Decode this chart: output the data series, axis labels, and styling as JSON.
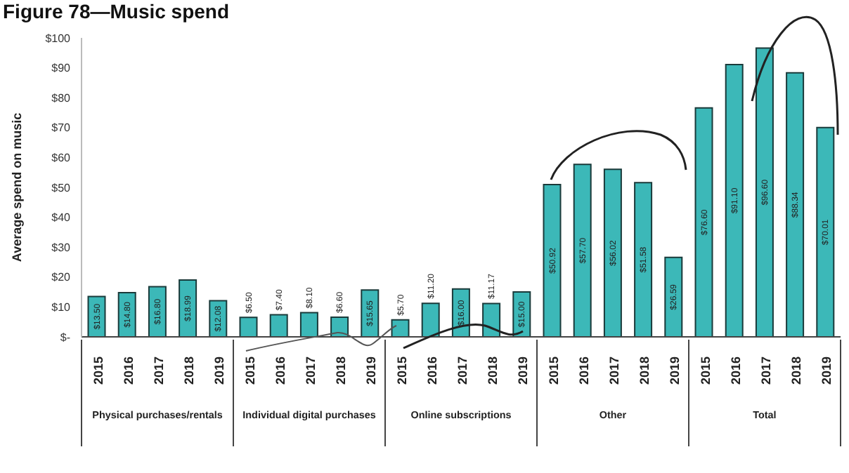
{
  "chart_data": {
    "type": "bar",
    "title": "Figure 78—Music spend",
    "ylabel": "Average spend on music",
    "categories": [
      "2015",
      "2016",
      "2017",
      "2018",
      "2019",
      "2015",
      "2016",
      "2017",
      "2018",
      "2019",
      "2015",
      "2016",
      "2017",
      "2018",
      "2019",
      "2015",
      "2016",
      "2017",
      "2018",
      "2019",
      "2015",
      "2016",
      "2017",
      "2018",
      "2019"
    ],
    "values": [
      13.5,
      14.8,
      16.8,
      18.99,
      12.08,
      6.5,
      7.4,
      8.1,
      6.6,
      15.65,
      5.7,
      11.2,
      16.0,
      11.17,
      15.0,
      50.92,
      57.7,
      56.02,
      51.58,
      26.59,
      76.6,
      91.1,
      96.6,
      88.34,
      70.01
    ],
    "value_labels": [
      "$13.50",
      "$14.80",
      "$16.80",
      "$18.99",
      "$12.08",
      "$6.50",
      "$7.40",
      "$8.10",
      "$6.60",
      "$15.65",
      "$5.70",
      "$11.20",
      "$16.00",
      "$11.17",
      "$15.00",
      "$50.92",
      "$57.70",
      "$56.02",
      "$51.58",
      "$26.59",
      "$76.60",
      "$91.10",
      "$96.60",
      "$88.34",
      "$70.01"
    ],
    "color": "#3cb8b8",
    "ylim": [
      0,
      100
    ],
    "yticks": [
      {
        "value": 0,
        "label": "$-"
      },
      {
        "value": 10,
        "label": "$10"
      },
      {
        "value": 20,
        "label": "$20"
      },
      {
        "value": 30,
        "label": "$30"
      },
      {
        "value": 40,
        "label": "$40"
      },
      {
        "value": 50,
        "label": "$50"
      },
      {
        "value": 60,
        "label": "$60"
      },
      {
        "value": 70,
        "label": "$70"
      },
      {
        "value": 80,
        "label": "$80"
      },
      {
        "value": 90,
        "label": "$90"
      },
      {
        "value": 100,
        "label": "$100"
      }
    ],
    "annotations": [
      "Physical purchases/rentals",
      "Individual digital purchases",
      "Online subscriptions",
      "Other",
      "Total"
    ],
    "grid": false,
    "legend": false
  }
}
